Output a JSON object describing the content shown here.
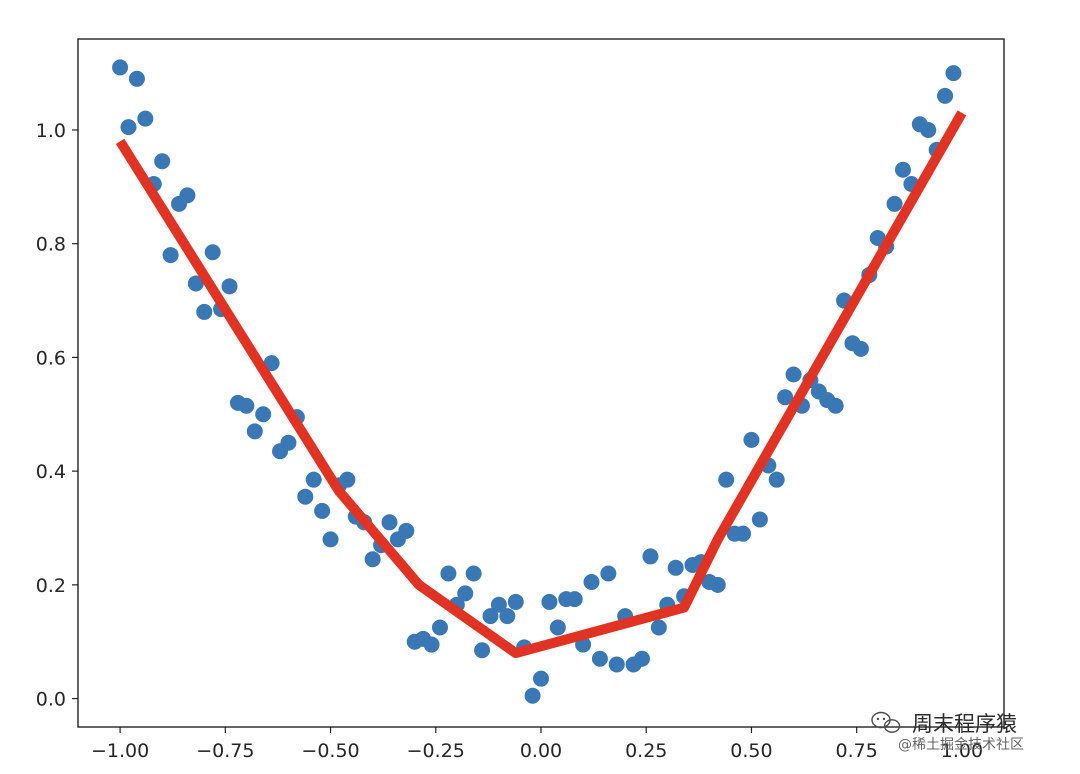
{
  "chart_data": {
    "type": "scatter",
    "title": "",
    "xlabel": "",
    "ylabel": "",
    "xlim": [
      -1.1,
      1.1
    ],
    "ylim": [
      -0.05,
      1.16
    ],
    "x_ticks": [
      -1.0,
      -0.75,
      -0.5,
      -0.25,
      0.0,
      0.25,
      0.5,
      0.75,
      1.0
    ],
    "x_tick_labels": [
      "−1.00",
      "−0.75",
      "−0.50",
      "−0.25",
      "0.00",
      "0.25",
      "0.50",
      "0.75",
      "1.00"
    ],
    "y_ticks": [
      0.0,
      0.2,
      0.4,
      0.6,
      0.8,
      1.0
    ],
    "y_tick_labels": [
      "0.0",
      "0.2",
      "0.4",
      "0.6",
      "0.8",
      "1.0"
    ],
    "grid": false,
    "series": [
      {
        "kind": "scatter",
        "color": "#3a78b5",
        "points": [
          [
            -1.0,
            1.11
          ],
          [
            -0.98,
            1.005
          ],
          [
            -0.96,
            1.09
          ],
          [
            -0.94,
            1.02
          ],
          [
            -0.92,
            0.905
          ],
          [
            -0.9,
            0.945
          ],
          [
            -0.88,
            0.78
          ],
          [
            -0.86,
            0.87
          ],
          [
            -0.84,
            0.885
          ],
          [
            -0.82,
            0.73
          ],
          [
            -0.8,
            0.68
          ],
          [
            -0.78,
            0.785
          ],
          [
            -0.76,
            0.685
          ],
          [
            -0.74,
            0.725
          ],
          [
            -0.72,
            0.52
          ],
          [
            -0.7,
            0.515
          ],
          [
            -0.68,
            0.47
          ],
          [
            -0.66,
            0.5
          ],
          [
            -0.64,
            0.59
          ],
          [
            -0.62,
            0.435
          ],
          [
            -0.6,
            0.45
          ],
          [
            -0.58,
            0.495
          ],
          [
            -0.56,
            0.355
          ],
          [
            -0.54,
            0.385
          ],
          [
            -0.52,
            0.33
          ],
          [
            -0.5,
            0.28
          ],
          [
            -0.48,
            0.375
          ],
          [
            -0.46,
            0.385
          ],
          [
            -0.44,
            0.32
          ],
          [
            -0.42,
            0.31
          ],
          [
            -0.4,
            0.245
          ],
          [
            -0.38,
            0.27
          ],
          [
            -0.36,
            0.31
          ],
          [
            -0.34,
            0.28
          ],
          [
            -0.32,
            0.295
          ],
          [
            -0.3,
            0.1
          ],
          [
            -0.28,
            0.105
          ],
          [
            -0.26,
            0.095
          ],
          [
            -0.24,
            0.125
          ],
          [
            -0.22,
            0.22
          ],
          [
            -0.2,
            0.165
          ],
          [
            -0.18,
            0.185
          ],
          [
            -0.16,
            0.22
          ],
          [
            -0.14,
            0.085
          ],
          [
            -0.12,
            0.145
          ],
          [
            -0.1,
            0.165
          ],
          [
            -0.08,
            0.145
          ],
          [
            -0.06,
            0.17
          ],
          [
            -0.04,
            0.09
          ],
          [
            -0.02,
            0.005
          ],
          [
            0.0,
            0.035
          ],
          [
            0.02,
            0.17
          ],
          [
            0.04,
            0.125
          ],
          [
            0.06,
            0.175
          ],
          [
            0.08,
            0.175
          ],
          [
            0.1,
            0.095
          ],
          [
            0.12,
            0.205
          ],
          [
            0.14,
            0.07
          ],
          [
            0.16,
            0.22
          ],
          [
            0.18,
            0.06
          ],
          [
            0.2,
            0.145
          ],
          [
            0.22,
            0.06
          ],
          [
            0.24,
            0.07
          ],
          [
            0.26,
            0.25
          ],
          [
            0.28,
            0.125
          ],
          [
            0.3,
            0.165
          ],
          [
            0.32,
            0.23
          ],
          [
            0.34,
            0.18
          ],
          [
            0.36,
            0.235
          ],
          [
            0.38,
            0.24
          ],
          [
            0.4,
            0.205
          ],
          [
            0.42,
            0.2
          ],
          [
            0.44,
            0.385
          ],
          [
            0.46,
            0.29
          ],
          [
            0.48,
            0.29
          ],
          [
            0.5,
            0.455
          ],
          [
            0.52,
            0.315
          ],
          [
            0.54,
            0.41
          ],
          [
            0.56,
            0.385
          ],
          [
            0.58,
            0.53
          ],
          [
            0.6,
            0.57
          ],
          [
            0.62,
            0.515
          ],
          [
            0.64,
            0.56
          ],
          [
            0.66,
            0.54
          ],
          [
            0.68,
            0.525
          ],
          [
            0.7,
            0.515
          ],
          [
            0.72,
            0.7
          ],
          [
            0.74,
            0.625
          ],
          [
            0.76,
            0.615
          ],
          [
            0.78,
            0.745
          ],
          [
            0.8,
            0.81
          ],
          [
            0.82,
            0.795
          ],
          [
            0.84,
            0.87
          ],
          [
            0.86,
            0.93
          ],
          [
            0.88,
            0.905
          ],
          [
            0.9,
            1.01
          ],
          [
            0.92,
            1.0
          ],
          [
            0.94,
            0.965
          ],
          [
            0.96,
            1.06
          ],
          [
            0.98,
            1.1
          ]
        ]
      },
      {
        "kind": "line",
        "color": "#e03323",
        "points": [
          [
            -1.0,
            0.98
          ],
          [
            -0.48,
            0.365
          ],
          [
            -0.29,
            0.2
          ],
          [
            -0.06,
            0.08
          ],
          [
            0.34,
            0.16
          ],
          [
            0.42,
            0.28
          ],
          [
            1.0,
            1.03
          ]
        ]
      }
    ]
  },
  "watermark": {
    "icon": "wechat-icon",
    "name": "周末程序猿",
    "sub": "@稀土掘金技术社区"
  }
}
